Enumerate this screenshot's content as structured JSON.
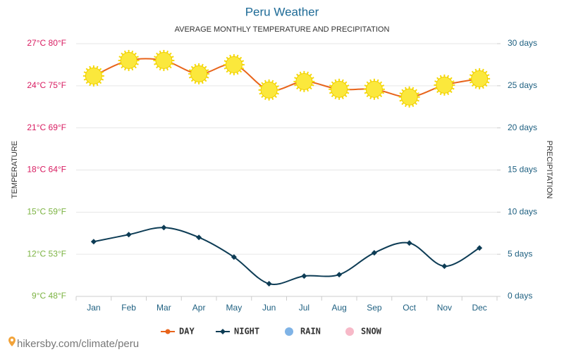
{
  "chart_data": {
    "type": "line",
    "title": "Peru Weather",
    "subtitle": "AVERAGE MONTHLY TEMPERATURE AND PRECIPITATION",
    "y_label": "TEMPERATURE",
    "y2_label": "PRECIPITATION",
    "source": "hikersby.com/climate/peru",
    "categories": [
      "Jan",
      "Feb",
      "Mar",
      "Apr",
      "May",
      "Jun",
      "Jul",
      "Aug",
      "Sep",
      "Oct",
      "Nov",
      "Dec"
    ],
    "series": [
      {
        "name": "DAY",
        "color": "#e8641b",
        "marker": "sun",
        "values": [
          24.7,
          25.8,
          25.8,
          24.85,
          25.5,
          23.7,
          24.3,
          23.75,
          23.75,
          23.2,
          24.05,
          24.5
        ]
      },
      {
        "name": "NIGHT",
        "color": "#0d3c55",
        "marker": "diamond",
        "values": [
          12.9,
          13.4,
          13.9,
          13.2,
          11.8,
          9.9,
          10.45,
          10.55,
          12.1,
          12.8,
          11.15,
          12.45
        ]
      },
      {
        "name": "RAIN",
        "color": "#7fb3e6",
        "marker": "circle",
        "axis": "y2",
        "values": [
          null,
          null,
          null,
          null,
          null,
          null,
          null,
          null,
          null,
          null,
          null,
          null
        ]
      },
      {
        "name": "SNOW",
        "color": "#f7b9c8",
        "marker": "circle",
        "axis": "y2",
        "values": [
          null,
          null,
          null,
          null,
          null,
          null,
          null,
          null,
          null,
          null,
          null,
          null
        ]
      }
    ],
    "ylim": [
      9,
      27
    ],
    "yticks": [
      {
        "value": 9,
        "label": "9°C 48°F"
      },
      {
        "value": 12,
        "label": "12°C 53°F"
      },
      {
        "value": 15,
        "label": "15°C 59°F"
      },
      {
        "value": 18,
        "label": "18°C 64°F"
      },
      {
        "value": 21,
        "label": "21°C 69°F"
      },
      {
        "value": 24,
        "label": "24°C 75°F"
      },
      {
        "value": 27,
        "label": "27°C 80°F"
      }
    ],
    "ytick_colors": [
      "#7cb342",
      "#7cb342",
      "#7cb342",
      "#d81b60",
      "#d81b60",
      "#d81b60",
      "#d81b60"
    ],
    "y2lim": [
      0,
      30
    ],
    "y2ticks": [
      {
        "value": 0,
        "label": "0 days"
      },
      {
        "value": 5,
        "label": "5 days"
      },
      {
        "value": 10,
        "label": "10 days"
      },
      {
        "value": 15,
        "label": "15 days"
      },
      {
        "value": 20,
        "label": "20 days"
      },
      {
        "value": 25,
        "label": "25 days"
      },
      {
        "value": 30,
        "label": "30 days"
      }
    ],
    "y2tick_color": "#1d5f80",
    "grid": true,
    "legend": "bottom"
  }
}
